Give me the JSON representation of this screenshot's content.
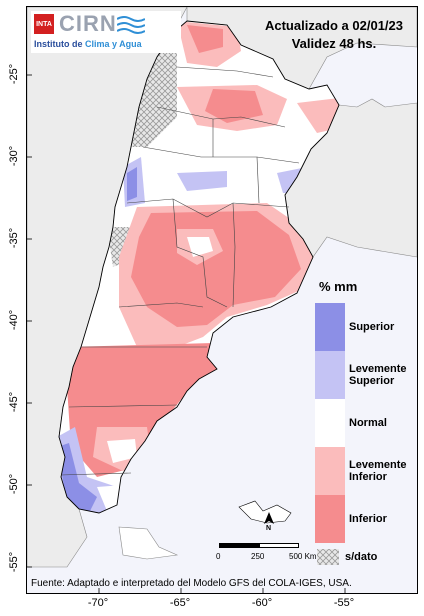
{
  "header": {
    "logo_mark": "INTA",
    "logo_name": "CIRN",
    "logo_sub_prefix": "Instituto de ",
    "logo_sub_accent": "Clima y Agua",
    "title_line1": "Actualizado a 02/01/23",
    "title_line2": "Validez 48 hs."
  },
  "legend": {
    "unit": "% mm",
    "items": [
      {
        "label": "Superior",
        "color": "#8c8fe6"
      },
      {
        "label": "Levemente Superior",
        "color": "#c4c3f4"
      },
      {
        "label": "Normal",
        "color": "#ffffff"
      },
      {
        "label": "Levemente Inferior",
        "color": "#fbbcbc"
      },
      {
        "label": "Inferior",
        "color": "#f58c8e"
      }
    ],
    "nodata_label": "s/dato"
  },
  "scale_bar": {
    "labels": [
      "0",
      "250",
      "500 Km"
    ]
  },
  "north_arrow": {
    "label": "N"
  },
  "axes": {
    "lat_ticks": [
      "-25°",
      "-30°",
      "-35°",
      "-40°",
      "-45°",
      "-50°",
      "-55°"
    ],
    "lon_ticks": [
      "-70°",
      "-65°",
      "-60°",
      "-55°"
    ]
  },
  "footer": {
    "source": "Fuente: Adaptado e interpretado del Modelo GFS del COLA-IGES, USA."
  },
  "colors": {
    "background": "#f3f4fb",
    "land": "#ffffff",
    "superior": "#8c8fe6",
    "lev_superior": "#c4c3f4",
    "lev_inferior": "#fbbcbc",
    "inferior": "#f58c8e",
    "nodata": "#d9d9d9"
  }
}
